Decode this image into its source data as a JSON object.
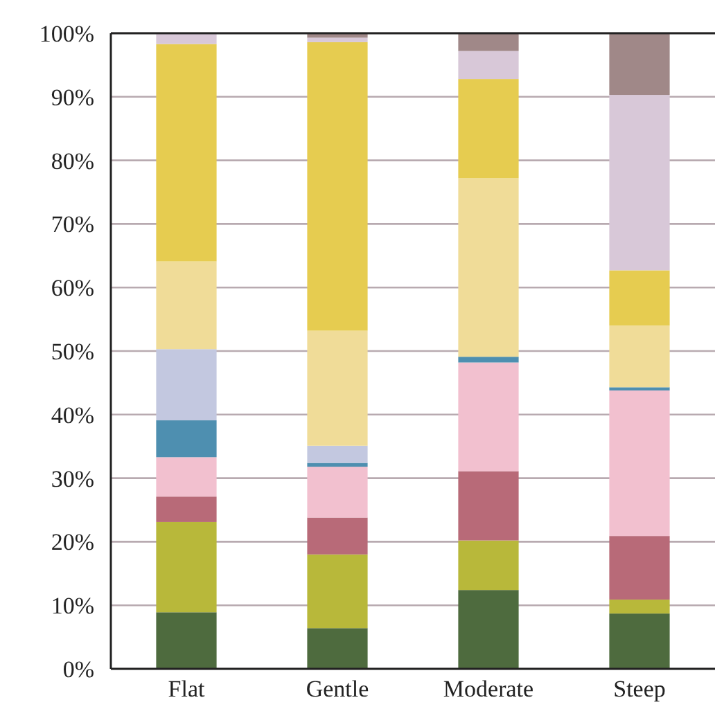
{
  "chart_data": {
    "type": "bar",
    "stacked": true,
    "categories": [
      "Flat",
      "Gentle",
      "Moderate",
      "Steep"
    ],
    "series": [
      {
        "color": "#4e6b3e",
        "values": [
          8.9,
          6.4,
          12.4,
          8.7
        ]
      },
      {
        "color": "#b8b83a",
        "values": [
          14.2,
          11.6,
          7.8,
          2.2
        ]
      },
      {
        "color": "#b86a78",
        "values": [
          4,
          5.8,
          10.9,
          10
        ]
      },
      {
        "color": "#f2c0cf",
        "values": [
          6.2,
          8,
          17.1,
          22.9
        ]
      },
      {
        "color": "#4e8fb0",
        "values": [
          5.8,
          0.6,
          0.9,
          0.5
        ]
      },
      {
        "color": "#c3c8e0",
        "values": [
          11.2,
          2.7,
          0,
          0
        ]
      },
      {
        "color": "#f0dc98",
        "values": [
          13.8,
          18.1,
          28.1,
          9.7
        ]
      },
      {
        "color": "#e6cc50",
        "values": [
          34.2,
          45.4,
          15.6,
          8.7
        ]
      },
      {
        "color": "#d8c8d8",
        "values": [
          1.7,
          0.7,
          4.4,
          27.6
        ]
      },
      {
        "color": "#a08888",
        "values": [
          0,
          0.7,
          2.8,
          9.7
        ]
      }
    ],
    "ylim": [
      0,
      100
    ],
    "yticks": [
      {
        "value": 0,
        "label": "0%"
      },
      {
        "value": 10,
        "label": "10%"
      },
      {
        "value": 20,
        "label": "20%"
      },
      {
        "value": 30,
        "label": "30%"
      },
      {
        "value": 40,
        "label": "40%"
      },
      {
        "value": 50,
        "label": "50%"
      },
      {
        "value": 60,
        "label": "60%"
      },
      {
        "value": 70,
        "label": "70%"
      },
      {
        "value": 80,
        "label": "80%"
      },
      {
        "value": 90,
        "label": "90%"
      },
      {
        "value": 100,
        "label": "100%"
      }
    ],
    "grid": "y"
  }
}
